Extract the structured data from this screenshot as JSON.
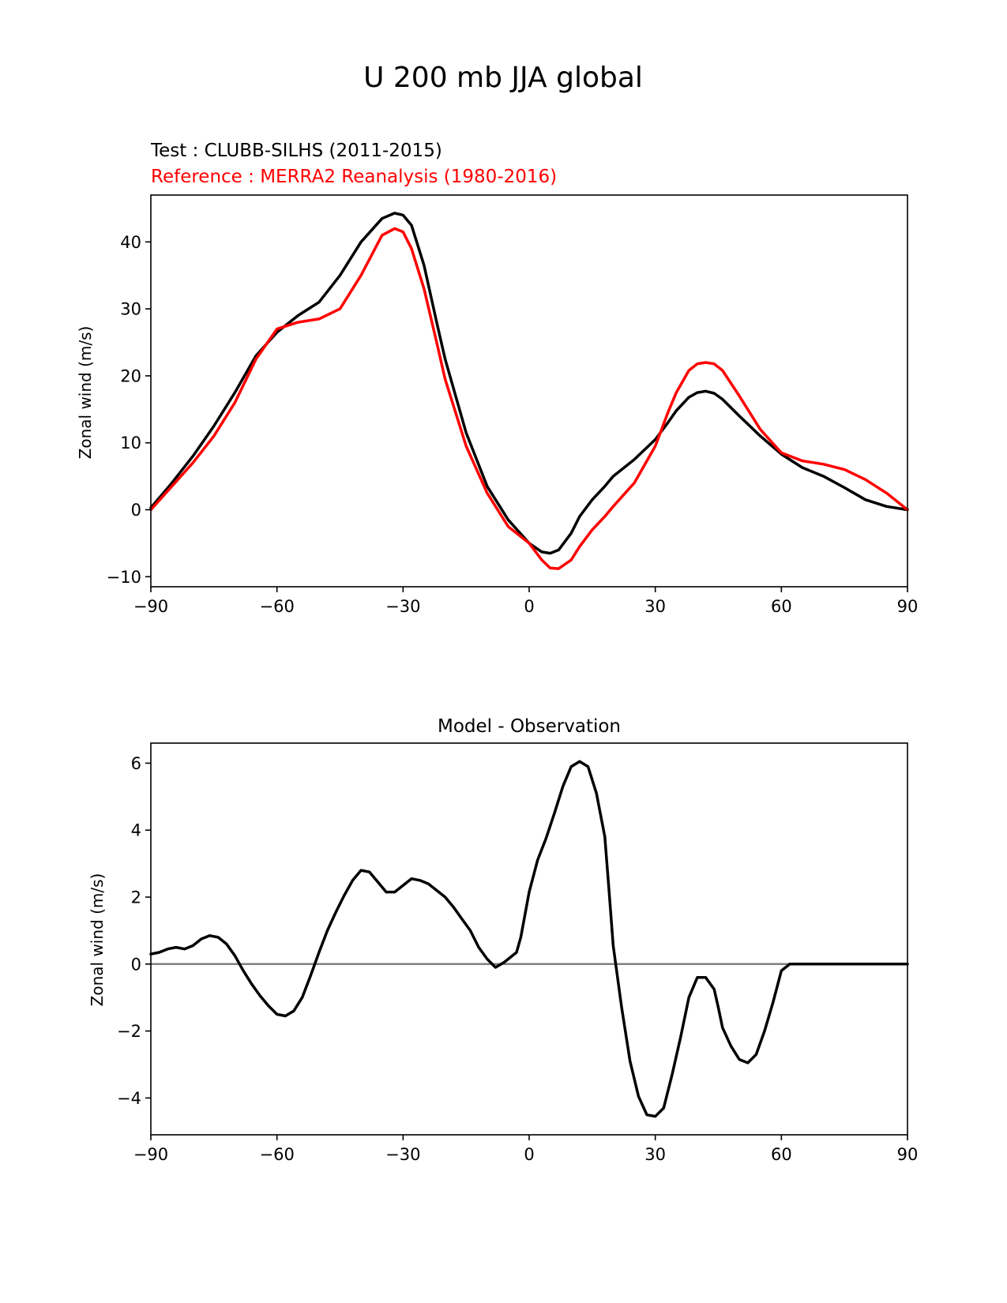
{
  "figure": {
    "title": "U 200 mb JJA global"
  },
  "chart_data": [
    {
      "type": "line",
      "test_label": "Test : CLUBB-SILHS (2011-2015)",
      "reference_label": "Reference : MERRA2 Reanalysis (1980-2016)",
      "xlabel": "",
      "ylabel": "Zonal wind (m/s)",
      "xlim": [
        -90,
        90
      ],
      "ylim": [
        -11.5,
        47
      ],
      "xticks": [
        -90,
        -60,
        -30,
        0,
        30,
        60,
        90
      ],
      "xtick_labels": [
        "−90",
        "−60",
        "−30",
        "0",
        "30",
        "60",
        "90"
      ],
      "yticks": [
        -10,
        0,
        10,
        20,
        30,
        40
      ],
      "ytick_labels": [
        "−10",
        "0",
        "10",
        "20",
        "30",
        "40"
      ],
      "x": [
        -90,
        -85,
        -80,
        -75,
        -70,
        -65,
        -60,
        -55,
        -50,
        -45,
        -40,
        -35,
        -32,
        -30,
        -28,
        -25,
        -22,
        -20,
        -15,
        -10,
        -5,
        0,
        3,
        5,
        7,
        10,
        12,
        15,
        18,
        20,
        25,
        30,
        33,
        35,
        38,
        40,
        42,
        44,
        46,
        50,
        55,
        60,
        65,
        70,
        75,
        80,
        85,
        90
      ],
      "series": [
        {
          "name": "Test : CLUBB-SILHS (2011-2015)",
          "color": "#000000",
          "values": [
            0.3,
            4.0,
            8.0,
            12.5,
            17.5,
            23.0,
            26.5,
            29.0,
            31.0,
            35.0,
            40.0,
            43.5,
            44.3,
            44.0,
            42.5,
            36.5,
            28.0,
            22.5,
            11.5,
            3.5,
            -1.5,
            -5.0,
            -6.3,
            -6.5,
            -6.0,
            -3.5,
            -1.0,
            1.5,
            3.5,
            5.0,
            7.5,
            10.5,
            13.0,
            14.8,
            16.8,
            17.5,
            17.7,
            17.4,
            16.5,
            14.0,
            11.0,
            8.3,
            6.3,
            5.0,
            3.3,
            1.5,
            0.5,
            0.0
          ]
        },
        {
          "name": "Reference : MERRA2 Reanalysis (1980-2016)",
          "color": "#ff0000",
          "values": [
            0.0,
            3.5,
            7.0,
            11.0,
            16.0,
            22.5,
            27.0,
            28.0,
            28.5,
            30.0,
            35.0,
            41.0,
            42.0,
            41.5,
            39.0,
            33.0,
            25.0,
            19.5,
            9.5,
            2.5,
            -2.5,
            -5.0,
            -7.5,
            -8.7,
            -8.8,
            -7.5,
            -5.5,
            -3.0,
            -1.0,
            0.5,
            4.0,
            9.5,
            14.5,
            17.5,
            20.8,
            21.8,
            22.0,
            21.8,
            20.8,
            17.0,
            12.0,
            8.5,
            7.3,
            6.8,
            6.0,
            4.5,
            2.5,
            0.0
          ]
        }
      ]
    },
    {
      "type": "line",
      "title": "Model - Observation",
      "xlabel": "",
      "ylabel": "Zonal wind (m/s)",
      "xlim": [
        -90,
        90
      ],
      "ylim": [
        -5.1,
        6.6
      ],
      "xticks": [
        -90,
        -60,
        -30,
        0,
        30,
        60,
        90
      ],
      "xtick_labels": [
        "−90",
        "−60",
        "−30",
        "0",
        "30",
        "60",
        "90"
      ],
      "yticks": [
        -4,
        -2,
        0,
        2,
        4,
        6
      ],
      "ytick_labels": [
        "−4",
        "−2",
        "0",
        "2",
        "4",
        "6"
      ],
      "zero_line_color": "#808080",
      "x": [
        -90,
        -88,
        -86,
        -84,
        -82,
        -80,
        -78,
        -76,
        -74,
        -72,
        -70,
        -68,
        -66,
        -64,
        -62,
        -60,
        -58,
        -56,
        -54,
        -52,
        -50,
        -48,
        -46,
        -44,
        -42,
        -40,
        -38,
        -36,
        -34,
        -32,
        -30,
        -28,
        -26,
        -24,
        -22,
        -20,
        -18,
        -16,
        -14,
        -12,
        -10,
        -8,
        -6,
        -4,
        -3,
        -2,
        0,
        2,
        4,
        6,
        8,
        10,
        12,
        14,
        16,
        18,
        19,
        20,
        22,
        24,
        26,
        28,
        30,
        32,
        34,
        36,
        38,
        40,
        42,
        44,
        45,
        46,
        48,
        50,
        52,
        54,
        56,
        58,
        60,
        62,
        64,
        66,
        68,
        70,
        72,
        74,
        76,
        78,
        80,
        82,
        84,
        86,
        88,
        90
      ],
      "series": [
        {
          "name": "Model - Observation",
          "color": "#000000",
          "values": [
            0.3,
            0.35,
            0.45,
            0.5,
            0.45,
            0.55,
            0.75,
            0.85,
            0.8,
            0.6,
            0.25,
            -0.2,
            -0.6,
            -0.95,
            -1.25,
            -1.5,
            -1.55,
            -1.4,
            -1.0,
            -0.35,
            0.35,
            1.0,
            1.55,
            2.05,
            2.5,
            2.8,
            2.75,
            2.45,
            2.15,
            2.15,
            2.35,
            2.55,
            2.5,
            2.4,
            2.2,
            2.0,
            1.7,
            1.35,
            1.0,
            0.5,
            0.15,
            -0.1,
            0.05,
            0.25,
            0.35,
            0.8,
            2.15,
            3.1,
            3.75,
            4.5,
            5.3,
            5.9,
            6.05,
            5.9,
            5.1,
            3.8,
            2.2,
            0.55,
            -1.3,
            -2.9,
            -3.95,
            -4.5,
            -4.55,
            -4.3,
            -3.3,
            -2.2,
            -1.0,
            -0.4,
            -0.4,
            -0.75,
            -1.3,
            -1.9,
            -2.45,
            -2.85,
            -2.95,
            -2.7,
            -2.0,
            -1.15,
            -0.2,
            0.0,
            0.0,
            0.0,
            0.0,
            0.0,
            0.0,
            0.0,
            0.0,
            0.0,
            0.0,
            0.0,
            0.0,
            0.0,
            0.0,
            0.0
          ]
        }
      ]
    }
  ]
}
